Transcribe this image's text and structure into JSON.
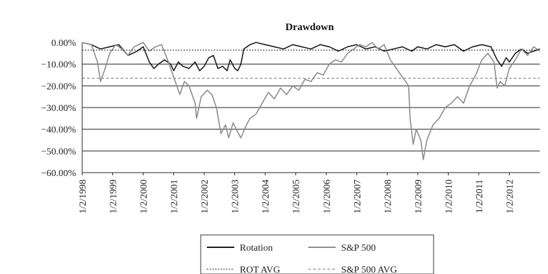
{
  "chart_data": {
    "type": "line",
    "title": "Drawdown",
    "xlabel": "",
    "ylabel": "",
    "ylim": [
      -60,
      0
    ],
    "y_ticks": [
      "0.00%",
      "−10.00%",
      "−20.00%",
      "−30.00%",
      "−40.00%",
      "−50.00%",
      "−60.00%"
    ],
    "y_tick_values": [
      0,
      -10,
      -20,
      -30,
      -40,
      -50,
      -60
    ],
    "x_range": [
      1998.0,
      2013.0
    ],
    "x_ticks": [
      "1/2/1998",
      "1/2/1999",
      "1/2/2000",
      "1/2/2001",
      "1/2/2002",
      "1/2/2003",
      "1/2/2004",
      "1/2/2005",
      "1/2/2006",
      "1/2/2007",
      "1/2/2008",
      "1/2/2009",
      "1/2/2010",
      "1/2/2011",
      "1/2/2012"
    ],
    "x_tick_values": [
      1998,
      1999,
      2000,
      2001,
      2002,
      2003,
      2004,
      2005,
      2006,
      2007,
      2008,
      2009,
      2010,
      2011,
      2012
    ],
    "grid": "horizontal",
    "legend_placement": "bottom",
    "series": [
      {
        "name": "Rotation",
        "color": "#1a1a1a",
        "style": "solid",
        "points": [
          [
            1998.0,
            0
          ],
          [
            1998.3,
            -1
          ],
          [
            1998.6,
            -3
          ],
          [
            1998.9,
            -2
          ],
          [
            1999.2,
            -1
          ],
          [
            1999.5,
            -6
          ],
          [
            1999.8,
            -4
          ],
          [
            2000.0,
            -2
          ],
          [
            2000.2,
            -9
          ],
          [
            2000.35,
            -12
          ],
          [
            2000.5,
            -10
          ],
          [
            2000.7,
            -8
          ],
          [
            2000.9,
            -10
          ],
          [
            2001.0,
            -13
          ],
          [
            2001.15,
            -9
          ],
          [
            2001.3,
            -11
          ],
          [
            2001.5,
            -12
          ],
          [
            2001.7,
            -9
          ],
          [
            2001.85,
            -13
          ],
          [
            2002.0,
            -11
          ],
          [
            2002.15,
            -7
          ],
          [
            2002.3,
            -6
          ],
          [
            2002.45,
            -12
          ],
          [
            2002.6,
            -11
          ],
          [
            2002.75,
            -13
          ],
          [
            2002.85,
            -8
          ],
          [
            2003.0,
            -12
          ],
          [
            2003.1,
            -13
          ],
          [
            2003.2,
            -10
          ],
          [
            2003.3,
            -3
          ],
          [
            2003.5,
            -1
          ],
          [
            2003.7,
            0
          ],
          [
            2004.0,
            -1
          ],
          [
            2004.3,
            -2
          ],
          [
            2004.6,
            -3
          ],
          [
            2004.9,
            -1
          ],
          [
            2005.2,
            -2
          ],
          [
            2005.5,
            -3
          ],
          [
            2005.8,
            -1
          ],
          [
            2006.1,
            -2
          ],
          [
            2006.4,
            -4
          ],
          [
            2006.7,
            -2
          ],
          [
            2007.0,
            -1
          ],
          [
            2007.3,
            -3
          ],
          [
            2007.6,
            -2
          ],
          [
            2007.9,
            -4
          ],
          [
            2008.2,
            -3
          ],
          [
            2008.5,
            -2
          ],
          [
            2008.8,
            -4
          ],
          [
            2009.0,
            -2
          ],
          [
            2009.3,
            -3
          ],
          [
            2009.6,
            -1
          ],
          [
            2009.9,
            -2
          ],
          [
            2010.2,
            -1
          ],
          [
            2010.5,
            -4
          ],
          [
            2010.8,
            -2
          ],
          [
            2011.1,
            -1
          ],
          [
            2011.4,
            -2
          ],
          [
            2011.6,
            -8
          ],
          [
            2011.75,
            -11
          ],
          [
            2011.9,
            -7
          ],
          [
            2012.0,
            -9
          ],
          [
            2012.2,
            -5
          ],
          [
            2012.4,
            -3
          ],
          [
            2012.6,
            -5
          ],
          [
            2012.8,
            -4
          ],
          [
            2013.0,
            -3
          ]
        ]
      },
      {
        "name": "S&P 500",
        "color": "#8c8c8c",
        "style": "solid",
        "points": [
          [
            1998.0,
            0
          ],
          [
            1998.3,
            -1
          ],
          [
            1998.5,
            -9
          ],
          [
            1998.6,
            -18
          ],
          [
            1998.75,
            -12
          ],
          [
            1998.9,
            -5
          ],
          [
            1999.1,
            -1
          ],
          [
            1999.3,
            -3
          ],
          [
            1999.5,
            -6
          ],
          [
            1999.7,
            -2
          ],
          [
            2000.0,
            0
          ],
          [
            2000.2,
            -4
          ],
          [
            2000.4,
            -2
          ],
          [
            2000.6,
            -1
          ],
          [
            2000.8,
            -8
          ],
          [
            2001.0,
            -16
          ],
          [
            2001.2,
            -24
          ],
          [
            2001.35,
            -18
          ],
          [
            2001.5,
            -20
          ],
          [
            2001.7,
            -28
          ],
          [
            2001.75,
            -35
          ],
          [
            2001.9,
            -25
          ],
          [
            2002.1,
            -22
          ],
          [
            2002.25,
            -24
          ],
          [
            2002.4,
            -30
          ],
          [
            2002.55,
            -42
          ],
          [
            2002.7,
            -38
          ],
          [
            2002.8,
            -44
          ],
          [
            2002.95,
            -37
          ],
          [
            2003.05,
            -40
          ],
          [
            2003.2,
            -44
          ],
          [
            2003.35,
            -39
          ],
          [
            2003.5,
            -35
          ],
          [
            2003.7,
            -33
          ],
          [
            2003.9,
            -28
          ],
          [
            2004.1,
            -23
          ],
          [
            2004.3,
            -26
          ],
          [
            2004.5,
            -21
          ],
          [
            2004.7,
            -24
          ],
          [
            2004.9,
            -20
          ],
          [
            2005.1,
            -22
          ],
          [
            2005.3,
            -17
          ],
          [
            2005.5,
            -18
          ],
          [
            2005.7,
            -14
          ],
          [
            2005.9,
            -15
          ],
          [
            2006.1,
            -10
          ],
          [
            2006.3,
            -8
          ],
          [
            2006.5,
            -9
          ],
          [
            2006.7,
            -5
          ],
          [
            2006.9,
            -3
          ],
          [
            2007.1,
            -1
          ],
          [
            2007.3,
            -2
          ],
          [
            2007.5,
            0
          ],
          [
            2007.7,
            -3
          ],
          [
            2007.9,
            -1
          ],
          [
            2008.1,
            -8
          ],
          [
            2008.3,
            -12
          ],
          [
            2008.5,
            -16
          ],
          [
            2008.7,
            -20
          ],
          [
            2008.75,
            -35
          ],
          [
            2008.85,
            -47
          ],
          [
            2008.95,
            -40
          ],
          [
            2009.1,
            -45
          ],
          [
            2009.18,
            -54
          ],
          [
            2009.3,
            -45
          ],
          [
            2009.5,
            -38
          ],
          [
            2009.7,
            -35
          ],
          [
            2009.9,
            -30
          ],
          [
            2010.1,
            -28
          ],
          [
            2010.3,
            -25
          ],
          [
            2010.5,
            -28
          ],
          [
            2010.7,
            -20
          ],
          [
            2010.9,
            -15
          ],
          [
            2011.1,
            -8
          ],
          [
            2011.3,
            -5
          ],
          [
            2011.5,
            -9
          ],
          [
            2011.6,
            -21
          ],
          [
            2011.7,
            -18
          ],
          [
            2011.85,
            -20
          ],
          [
            2012.0,
            -12
          ],
          [
            2012.2,
            -8
          ],
          [
            2012.4,
            -3
          ],
          [
            2012.6,
            -6
          ],
          [
            2012.8,
            -2
          ],
          [
            2013.0,
            -4
          ]
        ]
      },
      {
        "name": "ROT AVG",
        "color": "#1a1a1a",
        "style": "dotted",
        "points": [
          [
            1998.0,
            -3.5
          ],
          [
            2013.0,
            -3.5
          ]
        ]
      },
      {
        "name": "S&P 500 AVG",
        "color": "#777777",
        "style": "dashed",
        "points": [
          [
            1998.0,
            -16.5
          ],
          [
            2013.0,
            -16.5
          ]
        ]
      }
    ]
  },
  "legend": {
    "rotation_label": "Rotation",
    "sp500_label": "S&P 500",
    "rot_avg_label": "ROT AVG",
    "sp500_avg_label": "S&P 500 AVG"
  }
}
